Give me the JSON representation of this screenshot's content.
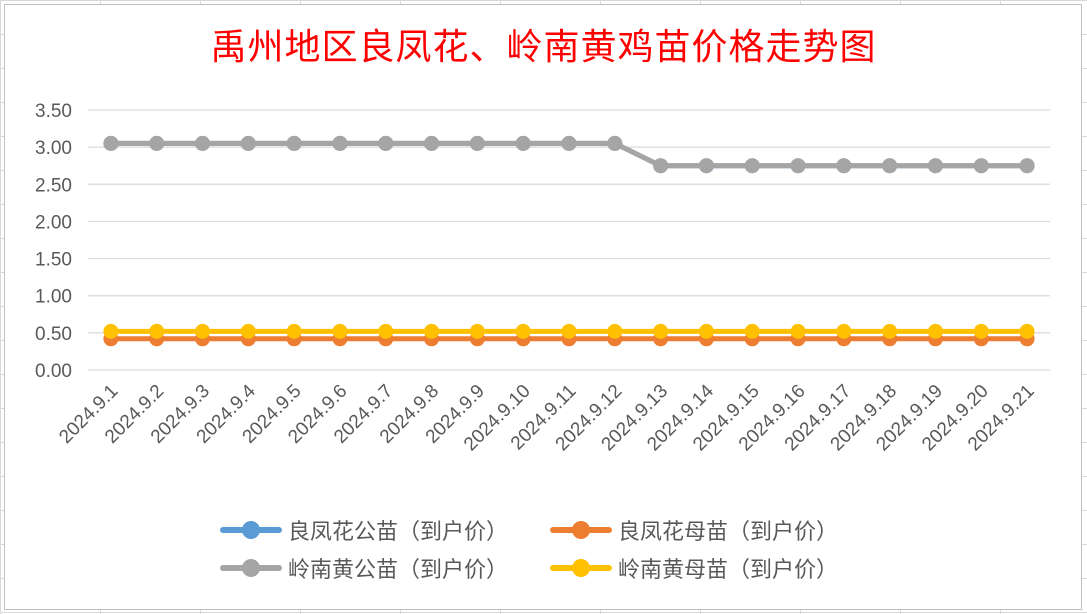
{
  "chart_data": {
    "type": "line",
    "title": "禹州地区良凤花、岭南黄鸡苗价格走势图",
    "categories": [
      "2024.9.1",
      "2024.9.2",
      "2024.9.3",
      "2024.9.4",
      "2024.9.5",
      "2024.9.6",
      "2024.9.7",
      "2024.9.8",
      "2024.9.9",
      "2024.9.10",
      "2024.9.11",
      "2024.9.12",
      "2024.9.13",
      "2024.9.14",
      "2024.9.15",
      "2024.9.16",
      "2024.9.17",
      "2024.9.18",
      "2024.9.19",
      "2024.9.20",
      "2024.9.21"
    ],
    "yticks": [
      "0.00",
      "0.50",
      "1.00",
      "1.50",
      "2.00",
      "2.50",
      "3.00",
      "3.50"
    ],
    "ylim": [
      0,
      3.5
    ],
    "grid": true,
    "legend_position": "bottom",
    "series": [
      {
        "name": "良凤花公苗（到户价）",
        "color": "#5b9bd5",
        "values": [
          3.05,
          3.05,
          3.05,
          3.05,
          3.05,
          3.05,
          3.05,
          3.05,
          3.05,
          3.05,
          3.05,
          3.05,
          2.75,
          2.75,
          2.75,
          2.75,
          2.75,
          2.75,
          2.75,
          2.75,
          2.75
        ]
      },
      {
        "name": "良凤花母苗（到户价）",
        "color": "#ed7d31",
        "values": [
          0.42,
          0.42,
          0.42,
          0.42,
          0.42,
          0.42,
          0.42,
          0.42,
          0.42,
          0.42,
          0.42,
          0.42,
          0.42,
          0.42,
          0.42,
          0.42,
          0.42,
          0.42,
          0.42,
          0.42,
          0.42
        ]
      },
      {
        "name": "岭南黄公苗（到户价）",
        "color": "#a5a5a5",
        "values": [
          3.05,
          3.05,
          3.05,
          3.05,
          3.05,
          3.05,
          3.05,
          3.05,
          3.05,
          3.05,
          3.05,
          3.05,
          2.75,
          2.75,
          2.75,
          2.75,
          2.75,
          2.75,
          2.75,
          2.75,
          2.75
        ]
      },
      {
        "name": "岭南黄母苗（到户价）",
        "color": "#ffc000",
        "values": [
          0.52,
          0.52,
          0.52,
          0.52,
          0.52,
          0.52,
          0.52,
          0.52,
          0.52,
          0.52,
          0.52,
          0.52,
          0.52,
          0.52,
          0.52,
          0.52,
          0.52,
          0.52,
          0.52,
          0.52,
          0.52
        ]
      }
    ]
  }
}
